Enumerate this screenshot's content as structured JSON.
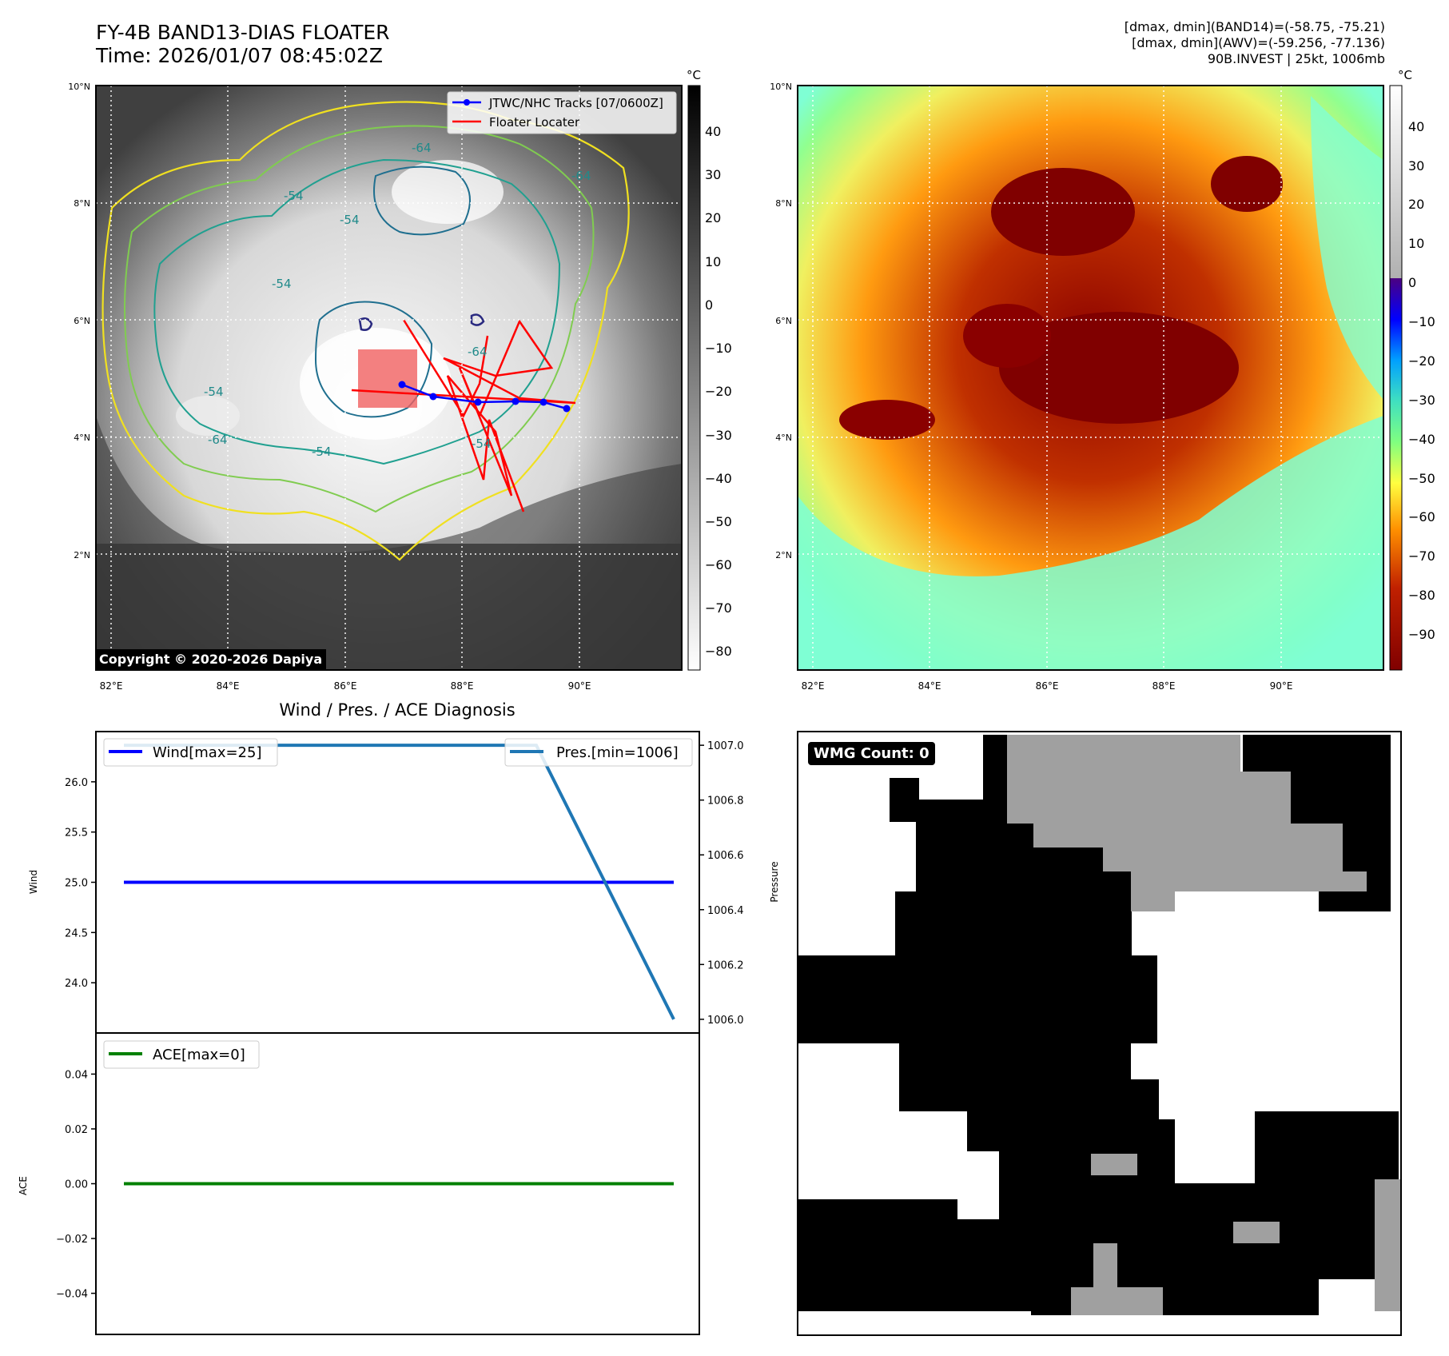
{
  "header": {
    "title": "FY-4B BAND13-DIAS FLOATER",
    "time": "Time: 2026/01/07 08:45:02Z",
    "band14_range": "[dmax, dmin](BAND14)=(-58.75, -75.21)",
    "awv_range": "[dmax, dmin](AWV)=(-59.256, -77.136)",
    "storm_info": "90B.INVEST | 25kt, 1006mb"
  },
  "map": {
    "lat_labels": [
      "10°N",
      "8°N",
      "6°N",
      "4°N",
      "2°N"
    ],
    "lon_labels": [
      "82°E",
      "84°E",
      "86°E",
      "88°E",
      "90°E"
    ],
    "unit": "°C",
    "contour_labels": [
      "-64",
      "-54",
      "-64",
      "-54",
      "-54",
      "-64",
      "-54",
      "-64",
      "-54",
      "-54"
    ],
    "copyright": "Copyright © 2020-2026 Dapiya",
    "legend": {
      "track": "JTWC/NHC Tracks [07/0600Z]",
      "floater": "Floater Locater"
    }
  },
  "colorbar_left": {
    "ticks": [
      "40",
      "30",
      "20",
      "10",
      "0",
      "−10",
      "−20",
      "−30",
      "−40",
      "−50",
      "−60",
      "−70",
      "−80"
    ]
  },
  "colorbar_right": {
    "ticks": [
      "40",
      "30",
      "20",
      "10",
      "0",
      "−10",
      "−20",
      "−30",
      "−40",
      "−50",
      "−60",
      "−70",
      "−80",
      "−90"
    ]
  },
  "chart_data": [
    {
      "type": "line",
      "title": "Wind / Pres. / ACE Diagnosis",
      "ylabel": "Wind",
      "ylim": [
        23.5,
        26.5
      ],
      "yticks": [
        "26.0",
        "25.5",
        "25.0",
        "24.5",
        "24.0"
      ],
      "series": [
        {
          "name": "Wind[max=25]",
          "color": "#0000ff",
          "values": [
            25,
            25,
            25,
            25,
            25
          ]
        }
      ],
      "secondary": {
        "ylabel": "Pressure",
        "ylim": [
          1005.95,
          1007.05
        ],
        "yticks": [
          "1007.0",
          "1006.8",
          "1006.6",
          "1006.4",
          "1006.2",
          "1006.0"
        ],
        "series": [
          {
            "name": "Pres.[min=1006]",
            "color": "#1f77b4",
            "values": [
              1007,
              1007,
              1007,
              1007,
              1006
            ]
          }
        ]
      }
    },
    {
      "type": "line",
      "ylabel": "ACE",
      "ylim": [
        -0.055,
        0.055
      ],
      "yticks": [
        "0.04",
        "0.02",
        "0.00",
        "−0.02",
        "−0.04"
      ],
      "series": [
        {
          "name": "ACE[max=0]",
          "color": "#008000",
          "values": [
            0,
            0,
            0,
            0,
            0
          ]
        }
      ]
    }
  ],
  "wmg": {
    "label": "WMG Count: 0"
  }
}
